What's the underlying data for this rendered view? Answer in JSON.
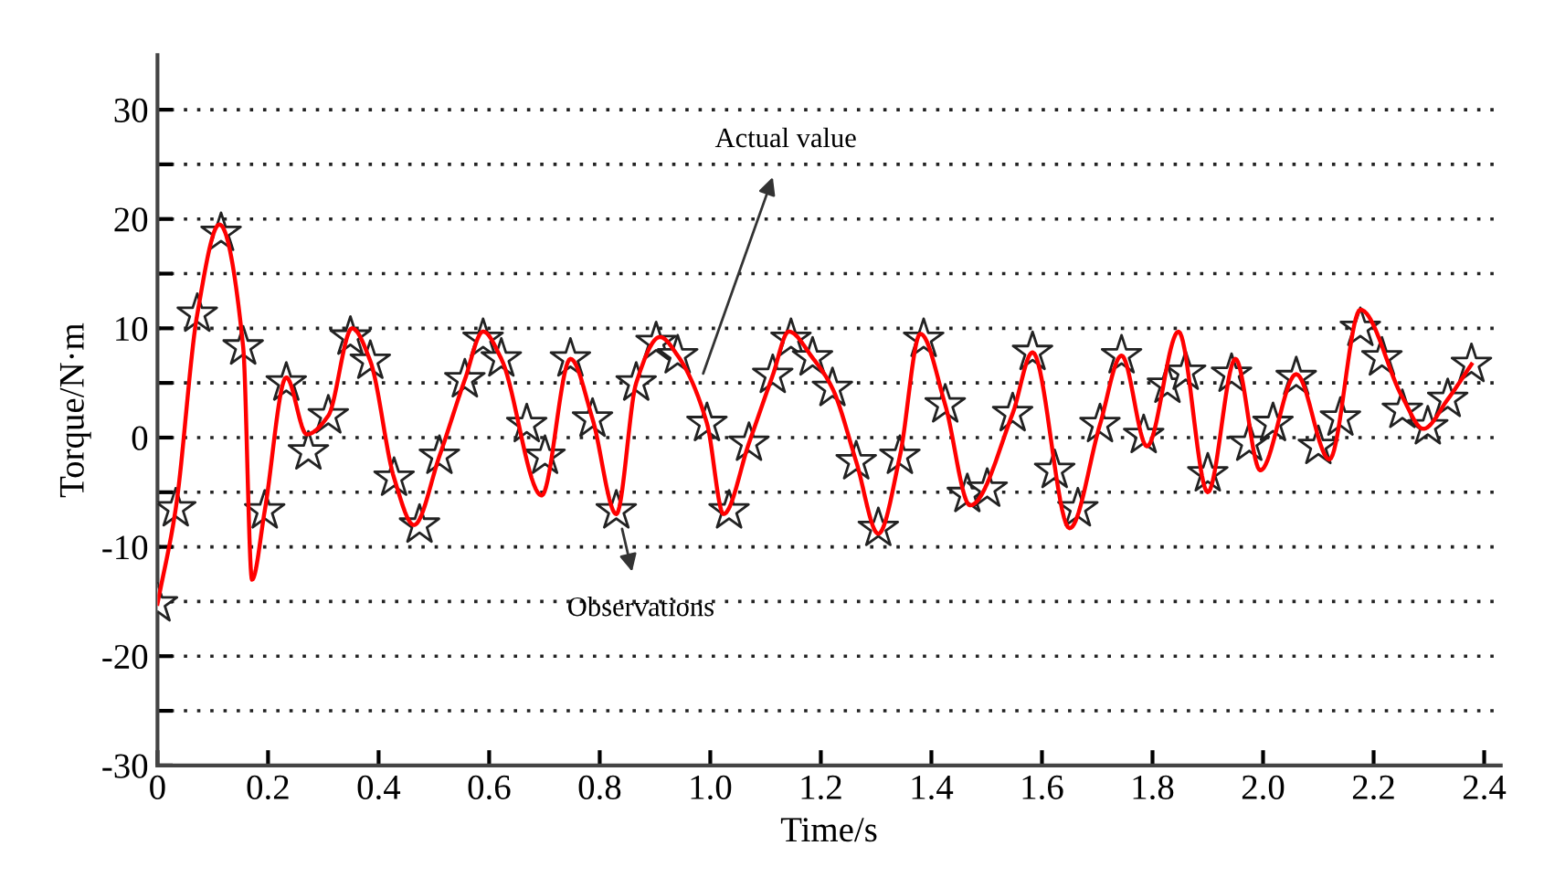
{
  "chart_data": {
    "type": "scatter",
    "xlabel": "Time/s",
    "ylabel": "Torque/N·m",
    "xlim": [
      0,
      2.43
    ],
    "ylim": [
      -30,
      35
    ],
    "xticks": [
      0,
      0.2,
      0.4,
      0.6,
      0.8,
      {
        "value": 1,
        "label": "1.0"
      },
      1.2,
      1.4,
      1.6,
      1.8,
      {
        "value": 2,
        "label": "2.0"
      },
      2.2,
      2.4
    ],
    "yticks": [
      -30,
      {
        "value": -25,
        "label": null
      },
      -20,
      {
        "value": -15,
        "label": null
      },
      -10,
      {
        "value": -5,
        "label": null
      },
      0,
      {
        "value": 5,
        "label": null
      },
      10,
      {
        "value": 15,
        "label": null
      },
      20,
      {
        "value": 25,
        "label": null
      },
      30
    ],
    "grid": "y",
    "legend": false,
    "series": [
      {
        "type": "line",
        "color": "#ff0000",
        "marker": "none",
        "line_style": "solid",
        "x": [
          0,
          0.033,
          0.072,
          0.112,
          0.155,
          0.171,
          0.194,
          0.233,
          0.27,
          0.309,
          0.352,
          0.385,
          0.428,
          0.464,
          0.51,
          0.556,
          0.589,
          0.622,
          0.695,
          0.747,
          0.787,
          0.83,
          0.866,
          0.909,
          0.941,
          0.994,
          1.024,
          1.07,
          1.113,
          1.142,
          1.185,
          1.221,
          1.264,
          1.304,
          1.343,
          1.38,
          1.425,
          1.47,
          1.547,
          1.583,
          1.65,
          1.705,
          1.744,
          1.79,
          1.847,
          1.9,
          1.95,
          1.995,
          2.06,
          2.12,
          2.176,
          2.252,
          2.29,
          2.334,
          2.377
        ],
        "values": [
          -15.2,
          -6.5,
          11.3,
          19.5,
          8.3,
          -13,
          -6.7,
          5.5,
          0.3,
          2,
          10,
          7,
          -3.7,
          -8,
          -1.7,
          5.3,
          9.7,
          7.2,
          -5.3,
          7.2,
          1.7,
          -7,
          5,
          9.2,
          7.5,
          1.3,
          -7,
          -0.5,
          5.7,
          9.7,
          7.3,
          4.5,
          -2.2,
          -8.8,
          -1.7,
          9.5,
          3,
          -6.2,
          2.2,
          7.8,
          -8.3,
          1.2,
          7.5,
          -0.8,
          9.7,
          -5,
          7.2,
          -3,
          5.8,
          -2,
          11.7,
          3.7,
          0.8,
          3.5,
          6.7
        ]
      },
      {
        "color": "#ffffff",
        "marker": "star",
        "x": [
          0,
          0.033,
          0.072,
          0.115,
          0.155,
          0.194,
          0.233,
          0.273,
          0.309,
          0.349,
          0.385,
          0.428,
          0.474,
          0.51,
          0.556,
          0.589,
          0.622,
          0.668,
          0.701,
          0.747,
          0.787,
          0.83,
          0.866,
          0.902,
          0.941,
          0.994,
          1.034,
          1.07,
          1.113,
          1.146,
          1.185,
          1.221,
          1.264,
          1.304,
          1.343,
          1.386,
          1.425,
          1.465,
          1.501,
          1.547,
          1.583,
          1.623,
          1.665,
          1.705,
          1.744,
          1.784,
          1.827,
          1.86,
          1.9,
          1.943,
          1.975,
          2.018,
          2.06,
          2.1,
          2.14,
          2.176,
          2.215,
          2.252,
          2.298,
          2.334,
          2.377
        ],
        "values": [
          -15.2,
          -6.5,
          11.3,
          18.7,
          8.3,
          -6.7,
          5,
          -1.3,
          2,
          9.2,
          7,
          -3.7,
          -8,
          -1.7,
          5.3,
          9,
          7.2,
          1.2,
          -1.7,
          7.2,
          1.7,
          -6.7,
          5,
          8.7,
          7.5,
          1.3,
          -6.7,
          -0.5,
          5.7,
          9,
          7.3,
          4.5,
          -2.2,
          -8.3,
          -1.7,
          9,
          3,
          -5.2,
          -4.7,
          2.2,
          7.8,
          -3,
          -6.5,
          1.2,
          7.5,
          0.2,
          4.8,
          6,
          -3.3,
          5.8,
          -0.5,
          1.3,
          5.5,
          -0.8,
          1.8,
          10,
          7.3,
          2.5,
          1,
          3.5,
          6.7
        ]
      }
    ],
    "annotations": [
      "Actual value",
      "Observations"
    ]
  }
}
